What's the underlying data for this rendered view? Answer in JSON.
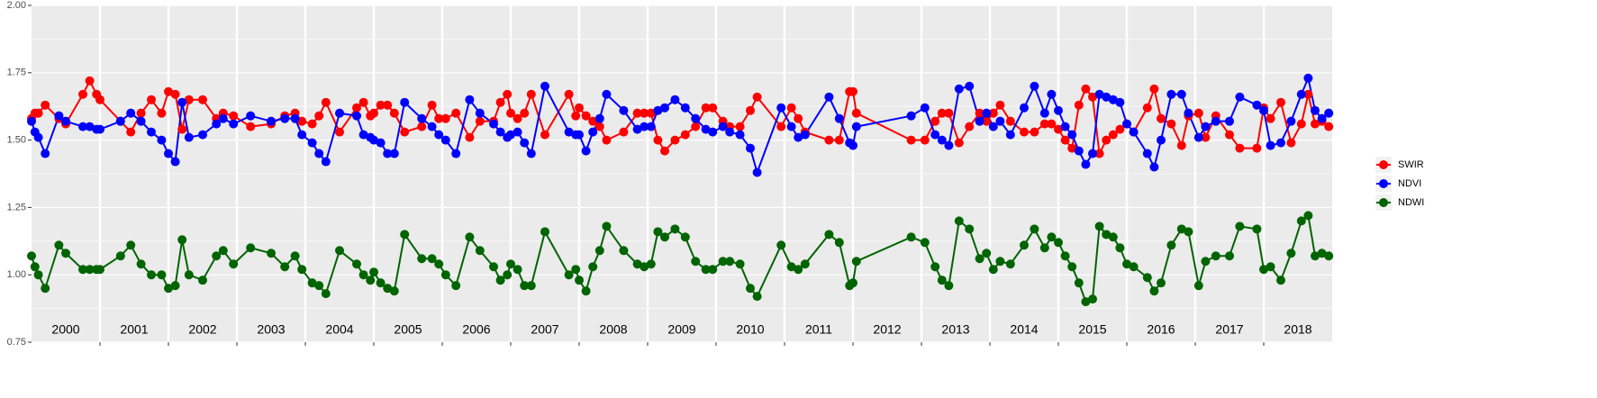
{
  "chart_data": {
    "type": "line",
    "x": [
      2000.0,
      2000.05,
      2000.1,
      2000.2,
      2000.4,
      2000.5,
      2000.75,
      2000.85,
      2000.95,
      2001.0,
      2001.3,
      2001.45,
      2001.6,
      2001.75,
      2001.9,
      2002.0,
      2002.1,
      2002.2,
      2002.3,
      2002.5,
      2002.7,
      2002.8,
      2002.95,
      2003.2,
      2003.5,
      2003.7,
      2003.85,
      2003.95,
      2004.1,
      2004.2,
      2004.3,
      2004.5,
      2004.75,
      2004.85,
      2004.95,
      2005.0,
      2005.1,
      2005.2,
      2005.3,
      2005.45,
      2005.7,
      2005.85,
      2005.95,
      2006.05,
      2006.2,
      2006.4,
      2006.55,
      2006.75,
      2006.85,
      2006.95,
      2007.0,
      2007.1,
      2007.2,
      2007.3,
      2007.5,
      2007.85,
      2007.95,
      2008.0,
      2008.1,
      2008.2,
      2008.3,
      2008.4,
      2008.65,
      2008.85,
      2008.95,
      2009.05,
      2009.15,
      2009.25,
      2009.4,
      2009.55,
      2009.7,
      2009.85,
      2009.95,
      2010.1,
      2010.2,
      2010.35,
      2010.5,
      2010.6,
      2010.95,
      2011.1,
      2011.2,
      2011.3,
      2011.65,
      2011.8,
      2011.95,
      2012.0,
      2012.05,
      2012.85,
      2013.05,
      2013.2,
      2013.3,
      2013.4,
      2013.55,
      2013.7,
      2013.85,
      2013.95,
      2014.05,
      2014.15,
      2014.3,
      2014.5,
      2014.65,
      2014.8,
      2014.9,
      2015.0,
      2015.1,
      2015.2,
      2015.3,
      2015.4,
      2015.5,
      2015.6,
      2015.7,
      2015.8,
      2015.9,
      2016.0,
      2016.1,
      2016.3,
      2016.4,
      2016.5,
      2016.65,
      2016.8,
      2016.9,
      2017.05,
      2017.15,
      2017.3,
      2017.5,
      2017.65,
      2017.9,
      2018.0,
      2018.1,
      2018.25,
      2018.4,
      2018.55,
      2018.65,
      2018.75,
      2018.85,
      2018.95
    ],
    "series": [
      {
        "name": "SWIR",
        "color": "#ff0000",
        "values": [
          1.58,
          1.6,
          1.6,
          1.63,
          1.58,
          1.56,
          1.67,
          1.72,
          1.67,
          1.65,
          1.57,
          1.53,
          1.6,
          1.65,
          1.6,
          1.68,
          1.67,
          1.54,
          1.65,
          1.65,
          1.58,
          1.6,
          1.59,
          1.55,
          1.56,
          1.59,
          1.6,
          1.57,
          1.56,
          1.59,
          1.64,
          1.53,
          1.62,
          1.64,
          1.59,
          1.6,
          1.63,
          1.63,
          1.6,
          1.53,
          1.55,
          1.63,
          1.58,
          1.58,
          1.6,
          1.51,
          1.57,
          1.57,
          1.64,
          1.67,
          1.6,
          1.58,
          1.6,
          1.67,
          1.52,
          1.67,
          1.59,
          1.62,
          1.59,
          1.57,
          1.55,
          1.5,
          1.53,
          1.6,
          1.6,
          1.6,
          1.5,
          1.46,
          1.5,
          1.52,
          1.55,
          1.62,
          1.62,
          1.57,
          1.55,
          1.55,
          1.61,
          1.66,
          1.55,
          1.62,
          1.58,
          1.53,
          1.5,
          1.5,
          1.68,
          1.68,
          1.6,
          1.5,
          1.5,
          1.57,
          1.6,
          1.6,
          1.49,
          1.55,
          1.6,
          1.57,
          1.6,
          1.63,
          1.57,
          1.53,
          1.53,
          1.56,
          1.56,
          1.54,
          1.5,
          1.47,
          1.63,
          1.69,
          1.66,
          1.45,
          1.5,
          1.52,
          1.54,
          1.56,
          1.53,
          1.62,
          1.69,
          1.58,
          1.56,
          1.48,
          1.59,
          1.6,
          1.51,
          1.59,
          1.52,
          1.47,
          1.47,
          1.62,
          1.58,
          1.64,
          1.49,
          1.56,
          1.67,
          1.56,
          1.57,
          1.55
        ]
      },
      {
        "name": "NDVI",
        "color": "#0000ff",
        "values": [
          1.57,
          1.53,
          1.51,
          1.45,
          1.59,
          1.57,
          1.55,
          1.55,
          1.54,
          1.54,
          1.57,
          1.6,
          1.57,
          1.53,
          1.5,
          1.45,
          1.42,
          1.64,
          1.51,
          1.52,
          1.56,
          1.58,
          1.56,
          1.59,
          1.57,
          1.58,
          1.58,
          1.52,
          1.49,
          1.45,
          1.42,
          1.6,
          1.59,
          1.52,
          1.51,
          1.5,
          1.49,
          1.45,
          1.45,
          1.64,
          1.58,
          1.55,
          1.52,
          1.5,
          1.45,
          1.65,
          1.6,
          1.56,
          1.53,
          1.51,
          1.52,
          1.53,
          1.49,
          1.45,
          1.7,
          1.53,
          1.52,
          1.52,
          1.46,
          1.53,
          1.58,
          1.67,
          1.61,
          1.54,
          1.55,
          1.55,
          1.61,
          1.62,
          1.65,
          1.62,
          1.58,
          1.54,
          1.53,
          1.55,
          1.53,
          1.52,
          1.47,
          1.38,
          1.62,
          1.55,
          1.51,
          1.52,
          1.66,
          1.58,
          1.49,
          1.48,
          1.55,
          1.59,
          1.62,
          1.52,
          1.5,
          1.48,
          1.69,
          1.7,
          1.57,
          1.6,
          1.55,
          1.57,
          1.52,
          1.62,
          1.7,
          1.6,
          1.67,
          1.61,
          1.55,
          1.52,
          1.46,
          1.41,
          1.45,
          1.67,
          1.66,
          1.65,
          1.64,
          1.56,
          1.53,
          1.45,
          1.4,
          1.5,
          1.67,
          1.67,
          1.6,
          1.51,
          1.55,
          1.57,
          1.57,
          1.66,
          1.63,
          1.61,
          1.48,
          1.49,
          1.57,
          1.67,
          1.73,
          1.61,
          1.58,
          1.6
        ]
      },
      {
        "name": "NDWI",
        "color": "#006400",
        "values": [
          1.07,
          1.03,
          1.0,
          0.95,
          1.11,
          1.08,
          1.02,
          1.02,
          1.02,
          1.02,
          1.07,
          1.11,
          1.04,
          1.0,
          1.0,
          0.95,
          0.96,
          1.13,
          1.0,
          0.98,
          1.07,
          1.09,
          1.04,
          1.1,
          1.08,
          1.03,
          1.07,
          1.02,
          0.97,
          0.96,
          0.93,
          1.09,
          1.04,
          1.0,
          0.98,
          1.01,
          0.97,
          0.95,
          0.94,
          1.15,
          1.06,
          1.06,
          1.04,
          1.0,
          0.96,
          1.14,
          1.09,
          1.03,
          0.98,
          1.0,
          1.04,
          1.02,
          0.96,
          0.96,
          1.16,
          1.0,
          1.02,
          0.98,
          0.94,
          1.03,
          1.09,
          1.18,
          1.09,
          1.04,
          1.03,
          1.04,
          1.16,
          1.14,
          1.17,
          1.14,
          1.05,
          1.02,
          1.02,
          1.05,
          1.05,
          1.04,
          0.95,
          0.92,
          1.11,
          1.03,
          1.02,
          1.04,
          1.15,
          1.12,
          0.96,
          0.97,
          1.05,
          1.14,
          1.12,
          1.03,
          0.98,
          0.96,
          1.2,
          1.17,
          1.06,
          1.08,
          1.02,
          1.05,
          1.04,
          1.11,
          1.17,
          1.1,
          1.14,
          1.12,
          1.07,
          1.03,
          0.97,
          0.9,
          0.91,
          1.18,
          1.15,
          1.14,
          1.1,
          1.04,
          1.03,
          0.99,
          0.94,
          0.97,
          1.11,
          1.17,
          1.16,
          0.96,
          1.05,
          1.07,
          1.07,
          1.18,
          1.17,
          1.02,
          1.03,
          0.98,
          1.08,
          1.2,
          1.22,
          1.07,
          1.08,
          1.07
        ]
      }
    ],
    "xlim": [
      2000,
      2019
    ],
    "xticks": [
      2001,
      2002,
      2003,
      2004,
      2005,
      2006,
      2007,
      2008,
      2009,
      2010,
      2011,
      2012,
      2013,
      2014,
      2015,
      2016,
      2017,
      2018
    ],
    "ylim": [
      0.75,
      2.0
    ],
    "yticks": [
      {
        "value": 0.75,
        "label": "0.75"
      },
      {
        "value": 1.0,
        "label": "1.00"
      },
      {
        "value": 1.25,
        "label": "1.25"
      },
      {
        "value": 1.5,
        "label": "1.50"
      },
      {
        "value": 1.75,
        "label": "1.75"
      },
      {
        "value": 2.0,
        "label": "2.00"
      }
    ],
    "year_labels": [
      "2000",
      "2001",
      "2002",
      "2003",
      "2004",
      "2005",
      "2006",
      "2007",
      "2008",
      "2009",
      "2010",
      "2011",
      "2012",
      "2013",
      "2014",
      "2015",
      "2016",
      "2017",
      "2018"
    ],
    "grid": true,
    "legend": "right"
  }
}
